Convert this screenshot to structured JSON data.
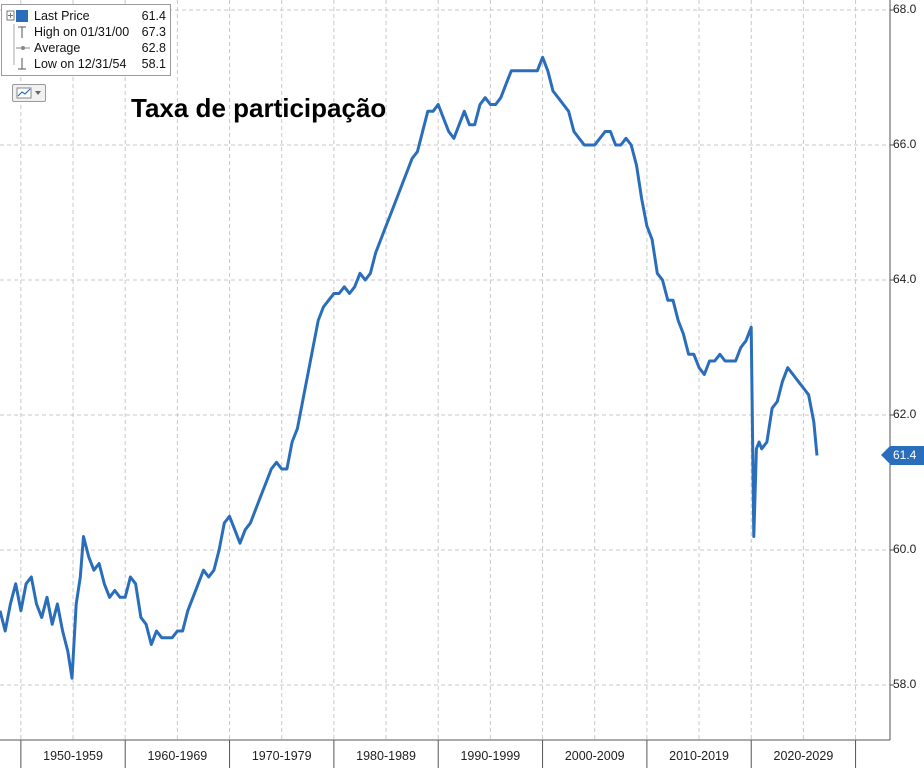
{
  "title": "Taxa de participação",
  "legend": {
    "rows": [
      {
        "label": "Last Price",
        "value": "61.4"
      },
      {
        "label": "High on 01/31/00",
        "value": "67.3"
      },
      {
        "label": "Average",
        "value": "62.8"
      },
      {
        "label": "Low on 12/31/54",
        "value": "58.1"
      }
    ]
  },
  "last_price_badge": "61.4",
  "colors": {
    "line": "#2a6ebb",
    "grid": "#c8c8c8",
    "axis": "#555555"
  },
  "chart_data": {
    "type": "line",
    "title": "Taxa de participação",
    "xlabel": "",
    "ylabel": "",
    "ylim": [
      57.2,
      68.2
    ],
    "xlim": [
      1948.0,
      2033.3
    ],
    "y_ticks": [
      "58.0",
      "60.0",
      "62.0",
      "64.0",
      "66.0",
      "68.0"
    ],
    "y_tick_values": [
      58,
      60,
      62,
      64,
      66,
      68
    ],
    "x_ticks": [
      "1950-1959",
      "1960-1969",
      "1970-1979",
      "1980-1989",
      "1990-1999",
      "2000-2009",
      "2010-2019",
      "2020-2029"
    ],
    "x_tick_centers": [
      1955,
      1965,
      1975,
      1985,
      1995,
      2005,
      2015,
      2025
    ],
    "x_boundaries": [
      1950,
      1960,
      1970,
      1980,
      1990,
      2000,
      2010,
      2020,
      2030
    ],
    "grid": true,
    "legend_position": "top-left",
    "series": [
      {
        "values": [
          [
            1948.0,
            59.1
          ],
          [
            1948.5,
            58.8
          ],
          [
            1949.0,
            59.2
          ],
          [
            1949.5,
            59.5
          ],
          [
            1950.0,
            59.1
          ],
          [
            1950.5,
            59.5
          ],
          [
            1951.0,
            59.6
          ],
          [
            1951.5,
            59.2
          ],
          [
            1952.0,
            59.0
          ],
          [
            1952.5,
            59.3
          ],
          [
            1953.0,
            58.9
          ],
          [
            1953.5,
            59.2
          ],
          [
            1954.0,
            58.8
          ],
          [
            1954.5,
            58.5
          ],
          [
            1954.9,
            58.1
          ],
          [
            1955.3,
            59.2
          ],
          [
            1955.7,
            59.6
          ],
          [
            1956.0,
            60.2
          ],
          [
            1956.5,
            59.9
          ],
          [
            1957.0,
            59.7
          ],
          [
            1957.5,
            59.8
          ],
          [
            1958.0,
            59.5
          ],
          [
            1958.5,
            59.3
          ],
          [
            1959.0,
            59.4
          ],
          [
            1959.5,
            59.3
          ],
          [
            1960.0,
            59.3
          ],
          [
            1960.5,
            59.6
          ],
          [
            1961.0,
            59.5
          ],
          [
            1961.5,
            59.0
          ],
          [
            1962.0,
            58.9
          ],
          [
            1962.5,
            58.6
          ],
          [
            1963.0,
            58.8
          ],
          [
            1963.5,
            58.7
          ],
          [
            1964.0,
            58.7
          ],
          [
            1964.5,
            58.7
          ],
          [
            1965.0,
            58.8
          ],
          [
            1965.5,
            58.8
          ],
          [
            1966.0,
            59.1
          ],
          [
            1966.5,
            59.3
          ],
          [
            1967.0,
            59.5
          ],
          [
            1967.5,
            59.7
          ],
          [
            1968.0,
            59.6
          ],
          [
            1968.5,
            59.7
          ],
          [
            1969.0,
            60.0
          ],
          [
            1969.5,
            60.4
          ],
          [
            1970.0,
            60.5
          ],
          [
            1970.5,
            60.3
          ],
          [
            1971.0,
            60.1
          ],
          [
            1971.5,
            60.3
          ],
          [
            1972.0,
            60.4
          ],
          [
            1972.5,
            60.6
          ],
          [
            1973.0,
            60.8
          ],
          [
            1973.5,
            61.0
          ],
          [
            1974.0,
            61.2
          ],
          [
            1974.5,
            61.3
          ],
          [
            1975.0,
            61.2
          ],
          [
            1975.5,
            61.2
          ],
          [
            1976.0,
            61.6
          ],
          [
            1976.5,
            61.8
          ],
          [
            1977.0,
            62.2
          ],
          [
            1977.5,
            62.6
          ],
          [
            1978.0,
            63.0
          ],
          [
            1978.5,
            63.4
          ],
          [
            1979.0,
            63.6
          ],
          [
            1979.5,
            63.7
          ],
          [
            1980.0,
            63.8
          ],
          [
            1980.5,
            63.8
          ],
          [
            1981.0,
            63.9
          ],
          [
            1981.5,
            63.8
          ],
          [
            1982.0,
            63.9
          ],
          [
            1982.5,
            64.1
          ],
          [
            1983.0,
            64.0
          ],
          [
            1983.5,
            64.1
          ],
          [
            1984.0,
            64.4
          ],
          [
            1984.5,
            64.6
          ],
          [
            1985.0,
            64.8
          ],
          [
            1985.5,
            65.0
          ],
          [
            1986.0,
            65.2
          ],
          [
            1986.5,
            65.4
          ],
          [
            1987.0,
            65.6
          ],
          [
            1987.5,
            65.8
          ],
          [
            1988.0,
            65.9
          ],
          [
            1988.5,
            66.2
          ],
          [
            1989.0,
            66.5
          ],
          [
            1989.5,
            66.5
          ],
          [
            1990.0,
            66.6
          ],
          [
            1990.5,
            66.4
          ],
          [
            1991.0,
            66.2
          ],
          [
            1991.5,
            66.1
          ],
          [
            1992.0,
            66.3
          ],
          [
            1992.5,
            66.5
          ],
          [
            1993.0,
            66.3
          ],
          [
            1993.5,
            66.3
          ],
          [
            1994.0,
            66.6
          ],
          [
            1994.5,
            66.7
          ],
          [
            1995.0,
            66.6
          ],
          [
            1995.5,
            66.6
          ],
          [
            1996.0,
            66.7
          ],
          [
            1996.5,
            66.9
          ],
          [
            1997.0,
            67.1
          ],
          [
            1997.5,
            67.1
          ],
          [
            1998.0,
            67.1
          ],
          [
            1998.5,
            67.1
          ],
          [
            1999.0,
            67.1
          ],
          [
            1999.5,
            67.1
          ],
          [
            2000.0,
            67.3
          ],
          [
            2000.5,
            67.1
          ],
          [
            2001.0,
            66.8
          ],
          [
            2001.5,
            66.7
          ],
          [
            2002.0,
            66.6
          ],
          [
            2002.5,
            66.5
          ],
          [
            2003.0,
            66.2
          ],
          [
            2003.5,
            66.1
          ],
          [
            2004.0,
            66.0
          ],
          [
            2004.5,
            66.0
          ],
          [
            2005.0,
            66.0
          ],
          [
            2005.5,
            66.1
          ],
          [
            2006.0,
            66.2
          ],
          [
            2006.5,
            66.2
          ],
          [
            2007.0,
            66.0
          ],
          [
            2007.5,
            66.0
          ],
          [
            2008.0,
            66.1
          ],
          [
            2008.5,
            66.0
          ],
          [
            2009.0,
            65.7
          ],
          [
            2009.5,
            65.2
          ],
          [
            2010.0,
            64.8
          ],
          [
            2010.5,
            64.6
          ],
          [
            2011.0,
            64.1
          ],
          [
            2011.5,
            64.0
          ],
          [
            2012.0,
            63.7
          ],
          [
            2012.5,
            63.7
          ],
          [
            2013.0,
            63.4
          ],
          [
            2013.5,
            63.2
          ],
          [
            2014.0,
            62.9
          ],
          [
            2014.5,
            62.9
          ],
          [
            2015.0,
            62.7
          ],
          [
            2015.5,
            62.6
          ],
          [
            2016.0,
            62.8
          ],
          [
            2016.5,
            62.8
          ],
          [
            2017.0,
            62.9
          ],
          [
            2017.5,
            62.8
          ],
          [
            2018.0,
            62.8
          ],
          [
            2018.5,
            62.8
          ],
          [
            2019.0,
            63.0
          ],
          [
            2019.5,
            63.1
          ],
          [
            2020.0,
            63.3
          ],
          [
            2020.25,
            60.2
          ],
          [
            2020.5,
            61.5
          ],
          [
            2020.75,
            61.6
          ],
          [
            2021.0,
            61.5
          ],
          [
            2021.5,
            61.6
          ],
          [
            2022.0,
            62.1
          ],
          [
            2022.5,
            62.2
          ],
          [
            2023.0,
            62.5
          ],
          [
            2023.5,
            62.7
          ],
          [
            2024.0,
            62.6
          ],
          [
            2024.5,
            62.5
          ],
          [
            2025.0,
            62.4
          ],
          [
            2025.5,
            62.3
          ],
          [
            2026.0,
            61.9
          ],
          [
            2026.3,
            61.4
          ]
        ]
      }
    ]
  }
}
